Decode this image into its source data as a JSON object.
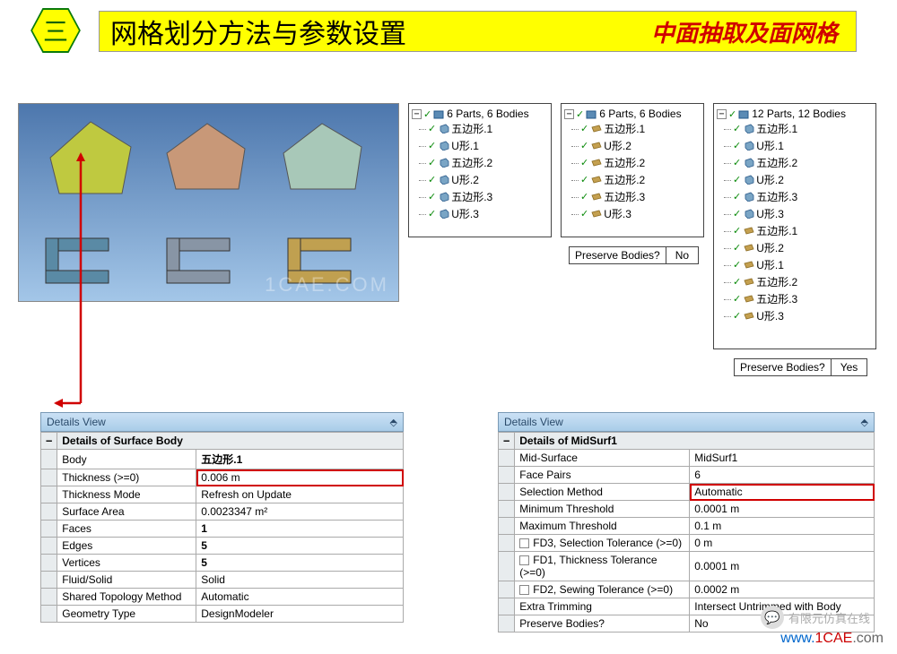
{
  "header": {
    "badge": "三",
    "title": "网格划分方法与参数设置",
    "subtitle": "中面抽取及面网格"
  },
  "viewport": {
    "watermark": "1CAE.COM",
    "pentagon_colors": [
      "#bfc940",
      "#c89878",
      "#a8c8b8"
    ],
    "cshape_colors": [
      "#5a8aa5",
      "#8895a5",
      "#c0a050"
    ]
  },
  "trees": [
    {
      "root": "6 Parts, 6 Bodies",
      "items": [
        "五边形.1",
        "U形.1",
        "五边形.2",
        "U形.2",
        "五边形.3",
        "U形.3"
      ],
      "icon_type": "solid"
    },
    {
      "root": "6 Parts, 6 Bodies",
      "items": [
        "五边形.1",
        "U形.2",
        "五边形.2",
        "五边形.2",
        "五边形.3",
        "U形.3"
      ],
      "icon_type": "surface",
      "preserve": {
        "label": "Preserve Bodies?",
        "value": "No"
      }
    },
    {
      "root": "12 Parts, 12 Bodies",
      "items": [
        "五边形.1",
        "U形.1",
        "五边形.2",
        "U形.2",
        "五边形.3",
        "U形.3",
        "五边形.1",
        "U形.2",
        "U形.1",
        "五边形.2",
        "五边形.3",
        "U形.3"
      ],
      "icon_type": "mixed",
      "preserve": {
        "label": "Preserve Bodies?",
        "value": "Yes"
      }
    }
  ],
  "details_left": {
    "header": "Details View",
    "section": "Details of Surface Body",
    "rows": [
      {
        "label": "Body",
        "value": "五边形.1",
        "bold": true
      },
      {
        "label": "Thickness (>=0)",
        "value": "0.006 m",
        "highlight": true
      },
      {
        "label": "Thickness Mode",
        "value": "Refresh on Update"
      },
      {
        "label": "Surface Area",
        "value": "0.0023347 m²"
      },
      {
        "label": "Faces",
        "value": "1",
        "bold": true
      },
      {
        "label": "Edges",
        "value": "5",
        "bold": true
      },
      {
        "label": "Vertices",
        "value": "5",
        "bold": true
      },
      {
        "label": "Fluid/Solid",
        "value": "Solid"
      },
      {
        "label": "Shared Topology Method",
        "value": "Automatic"
      },
      {
        "label": "Geometry Type",
        "value": "DesignModeler"
      }
    ]
  },
  "details_right": {
    "header": "Details View",
    "section": "Details of MidSurf1",
    "rows": [
      {
        "label": "Mid-Surface",
        "value": "MidSurf1"
      },
      {
        "label": "Face Pairs",
        "value": "6"
      },
      {
        "label": "Selection Method",
        "value": "Automatic",
        "highlight": true
      },
      {
        "label": "Minimum Threshold",
        "value": "0.0001 m"
      },
      {
        "label": "Maximum Threshold",
        "value": "0.1 m"
      },
      {
        "label": "FD3, Selection Tolerance (>=0)",
        "value": "0 m",
        "checkbox": true
      },
      {
        "label": "FD1, Thickness Tolerance (>=0)",
        "value": "0.0001 m",
        "checkbox": true
      },
      {
        "label": "FD2, Sewing Tolerance (>=0)",
        "value": "0.0002 m",
        "checkbox": true
      },
      {
        "label": "Extra Trimming",
        "value": "Intersect Untrimmed with Body"
      },
      {
        "label": "Preserve Bodies?",
        "value": "No"
      }
    ]
  },
  "footer": {
    "wechat": "有限元仿真在线",
    "url_parts": [
      "www.",
      "1CAE",
      ".com"
    ]
  }
}
